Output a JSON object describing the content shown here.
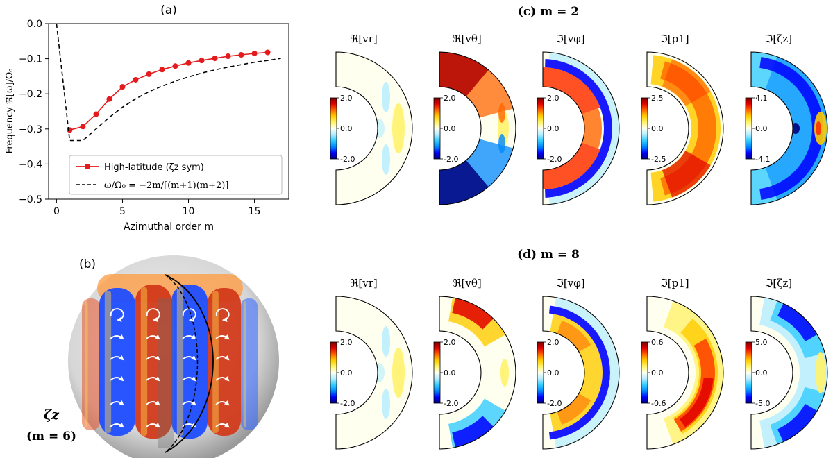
{
  "colors": {
    "line_red": "#e41a1c",
    "line_dash": "#000000",
    "cmap": [
      "#00007f",
      "#0000ff",
      "#0088ff",
      "#33ccff",
      "#b3ecff",
      "#fffff0",
      "#fff36b",
      "#ffcc00",
      "#ff6600",
      "#e00000",
      "#7f0000"
    ]
  },
  "chart_data": [
    {
      "id": "a",
      "type": "line",
      "panel_label": "(a)",
      "xlabel": "Azimuthal order m",
      "ylabel": "Frequency ℜ[ω]/Ω₀",
      "xlim": [
        -0.6,
        17.6
      ],
      "ylim": [
        -0.5,
        0.0
      ],
      "xticks": [
        0,
        5,
        10,
        15
      ],
      "yticks": [
        0.0,
        -0.1,
        -0.2,
        -0.3,
        -0.4,
        -0.5
      ],
      "ytick_labels": [
        "0.0",
        "−0.1",
        "−0.2",
        "−0.3",
        "−0.4",
        "−0.5"
      ],
      "series": [
        {
          "name": "High-latitude (ζz sym)",
          "style": "red-markers",
          "x": [
            1,
            2,
            3,
            4,
            5,
            6,
            7,
            8,
            9,
            10,
            11,
            12,
            13,
            14,
            15,
            16
          ],
          "y": [
            -0.303,
            -0.293,
            -0.258,
            -0.215,
            -0.18,
            -0.16,
            -0.144,
            -0.131,
            -0.121,
            -0.112,
            -0.105,
            -0.099,
            -0.093,
            -0.089,
            -0.085,
            -0.082
          ]
        },
        {
          "name": "ω/Ω₀ = −2m/[(m+1)(m+2)]",
          "style": "black-dashed",
          "x": [
            0,
            1,
            2,
            3,
            4,
            5,
            6,
            7,
            8,
            9,
            10,
            11,
            12,
            13,
            14,
            15,
            16,
            17
          ],
          "y": [
            0.0,
            -0.333,
            -0.333,
            -0.3,
            -0.267,
            -0.238,
            -0.214,
            -0.194,
            -0.178,
            -0.164,
            -0.152,
            -0.141,
            -0.132,
            -0.124,
            -0.117,
            -0.11,
            -0.105,
            -0.099
          ]
        }
      ]
    },
    {
      "id": "b",
      "type": "other",
      "panel_label": "(b)",
      "caption_line1": "ζz",
      "caption_line2": "(m = 6)"
    },
    {
      "id": "c",
      "type": "heatmap",
      "title": "(c) m = 2",
      "panels": [
        {
          "label": "ℜ[vr]",
          "cmax": "2.0",
          "cmid": "0.0",
          "cmin": "-2.0",
          "pattern": "vr"
        },
        {
          "label": "ℜ[vθ]",
          "cmax": "2.0",
          "cmid": "0.0",
          "cmin": "-2.0",
          "pattern": "vtheta2"
        },
        {
          "label": "ℑ[vφ]",
          "cmax": "2.0",
          "cmid": "0.0",
          "cmin": "-2.0",
          "pattern": "vphi2"
        },
        {
          "label": "ℑ[p1]",
          "cmax": "2.5",
          "cmid": "0.0",
          "cmin": "-2.5",
          "pattern": "p2"
        },
        {
          "label": "ℑ[ζz]",
          "cmax": "4.1",
          "cmid": "0.0",
          "cmin": "-4.1",
          "pattern": "zeta2"
        }
      ]
    },
    {
      "id": "d",
      "type": "heatmap",
      "title": "(d) m = 8",
      "panels": [
        {
          "label": "ℜ[vr]",
          "cmax": "2.0",
          "cmid": "0.0",
          "cmin": "-2.0",
          "pattern": "vr"
        },
        {
          "label": "ℜ[vθ]",
          "cmax": "2.0",
          "cmid": "0.0",
          "cmin": "-2.0",
          "pattern": "vtheta8"
        },
        {
          "label": "ℑ[vφ]",
          "cmax": "2.0",
          "cmid": "0.0",
          "cmin": "-2.0",
          "pattern": "vphi8"
        },
        {
          "label": "ℑ[p1]",
          "cmax": "0.6",
          "cmid": "0.0",
          "cmin": "-0.6",
          "pattern": "p8"
        },
        {
          "label": "ℑ[ζz]",
          "cmax": "5.0",
          "cmid": "0.0",
          "cmin": "-5.0",
          "pattern": "zeta8"
        }
      ]
    }
  ]
}
